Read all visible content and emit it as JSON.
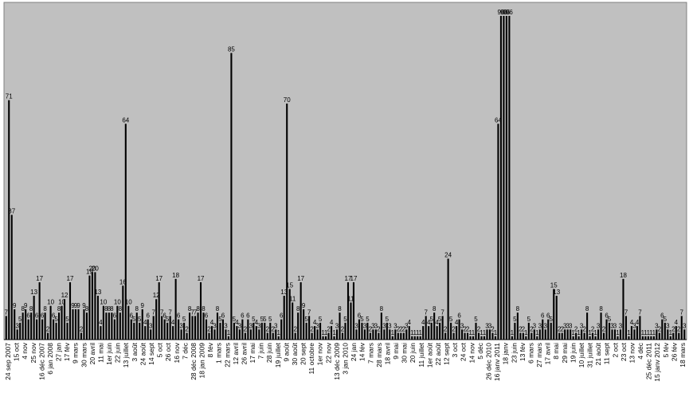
{
  "chart_data": {
    "type": "bar",
    "title": "",
    "xlabel": "",
    "ylabel": "",
    "ylim": [
      0,
      100
    ],
    "grid": false,
    "legend": "none",
    "colors": {
      "plot_background": "#c0c0c0",
      "bar": "#000000",
      "frame": "#808080"
    },
    "tick_labels": [
      "24 sep 2007",
      "15 oct",
      "4 nov",
      "25 nov",
      "16 déc 2007",
      "6 jan 2008",
      "27 jan",
      "17 fév",
      "9 mars",
      "30 mars",
      "20 avril",
      "11 mai",
      "1er juin",
      "22 juin",
      "13 juillet",
      "3 août",
      "24 août",
      "14 sept",
      "5 oct",
      "26 oct",
      "16 nov",
      "7 déc",
      "28 déc 2008",
      "18 jan 2009",
      "8 fév",
      "1 mars",
      "22 mars",
      "12 avril",
      "26 avril",
      "17 mai",
      "7 juin",
      "28 juin",
      "19 juillet",
      "9 août",
      "30 août",
      "20 sept",
      "11 octobre",
      "1er nov",
      "22 nov",
      "13 déc 2009",
      "3 jan 2010",
      "24 jan",
      "14 fév",
      "7 mars",
      "28 mars",
      "18 avril",
      "9 mai",
      "30 mai",
      "20 juin",
      "11 juillet",
      "1er août",
      "22 août",
      "12 sept",
      "3 oct",
      "24 oct",
      "14 nov",
      "5 déc",
      "26 déc 2010",
      "16 janv 2011",
      "18 janv",
      "23 juin",
      "13 fév",
      "6 mars",
      "27 mars",
      "17 avril",
      "8 mai",
      "29 mai",
      "19 juin",
      "10 juillet",
      "31 juillet",
      "21 août",
      "11 sept",
      "2 oct",
      "23 oct",
      "13 nov",
      "4 déc",
      "25 déc 2011",
      "15 janv 2012",
      "5 fév",
      "26 fév",
      "18 mars"
    ],
    "values": [
      7,
      71,
      37,
      9,
      3,
      5,
      8,
      9,
      6,
      8,
      13,
      6,
      17,
      6,
      8,
      2,
      10,
      6,
      5,
      8,
      10,
      12,
      5,
      17,
      9,
      9,
      9,
      2,
      9,
      8,
      19,
      20,
      20,
      13,
      4,
      10,
      8,
      8,
      8,
      6,
      10,
      8,
      16,
      64,
      10,
      6,
      5,
      8,
      5,
      9,
      4,
      6,
      3,
      7,
      12,
      17,
      7,
      6,
      5,
      7,
      4,
      18,
      6,
      3,
      5,
      2,
      8,
      7,
      7,
      8,
      17,
      8,
      6,
      2,
      4,
      3,
      8,
      5,
      6,
      3,
      1,
      85,
      5,
      4,
      3,
      6,
      2,
      6,
      3,
      5,
      4,
      3,
      5,
      5,
      2,
      5,
      2,
      3,
      1,
      6,
      13,
      70,
      15,
      11,
      2,
      8,
      17,
      9,
      5,
      7,
      2,
      4,
      3,
      5,
      1,
      1,
      2,
      4,
      1,
      3,
      8,
      2,
      5,
      17,
      11,
      17,
      3,
      6,
      5,
      3,
      5,
      2,
      3,
      3,
      2,
      8,
      3,
      5,
      3,
      1,
      3,
      2,
      2,
      2,
      3,
      4,
      1,
      1,
      1,
      1,
      4,
      7,
      4,
      5,
      8,
      4,
      5,
      7,
      2,
      24,
      5,
      2,
      4,
      6,
      3,
      2,
      2,
      1,
      1,
      5,
      2,
      1,
      1,
      3,
      3,
      2,
      1,
      64,
      96,
      96,
      96,
      96,
      1,
      5,
      8,
      2,
      2,
      1,
      5,
      2,
      3,
      1,
      3,
      6,
      3,
      6,
      5,
      15,
      13,
      2,
      2,
      3,
      3,
      3,
      1,
      2,
      1,
      3,
      2,
      8,
      1,
      2,
      1,
      3,
      8,
      2,
      6,
      5,
      3,
      3,
      1,
      3,
      18,
      7,
      1,
      4,
      3,
      4,
      7,
      1,
      1,
      1,
      1,
      1,
      3,
      2,
      6,
      5,
      3,
      1,
      2,
      4,
      2,
      7,
      3
    ]
  }
}
